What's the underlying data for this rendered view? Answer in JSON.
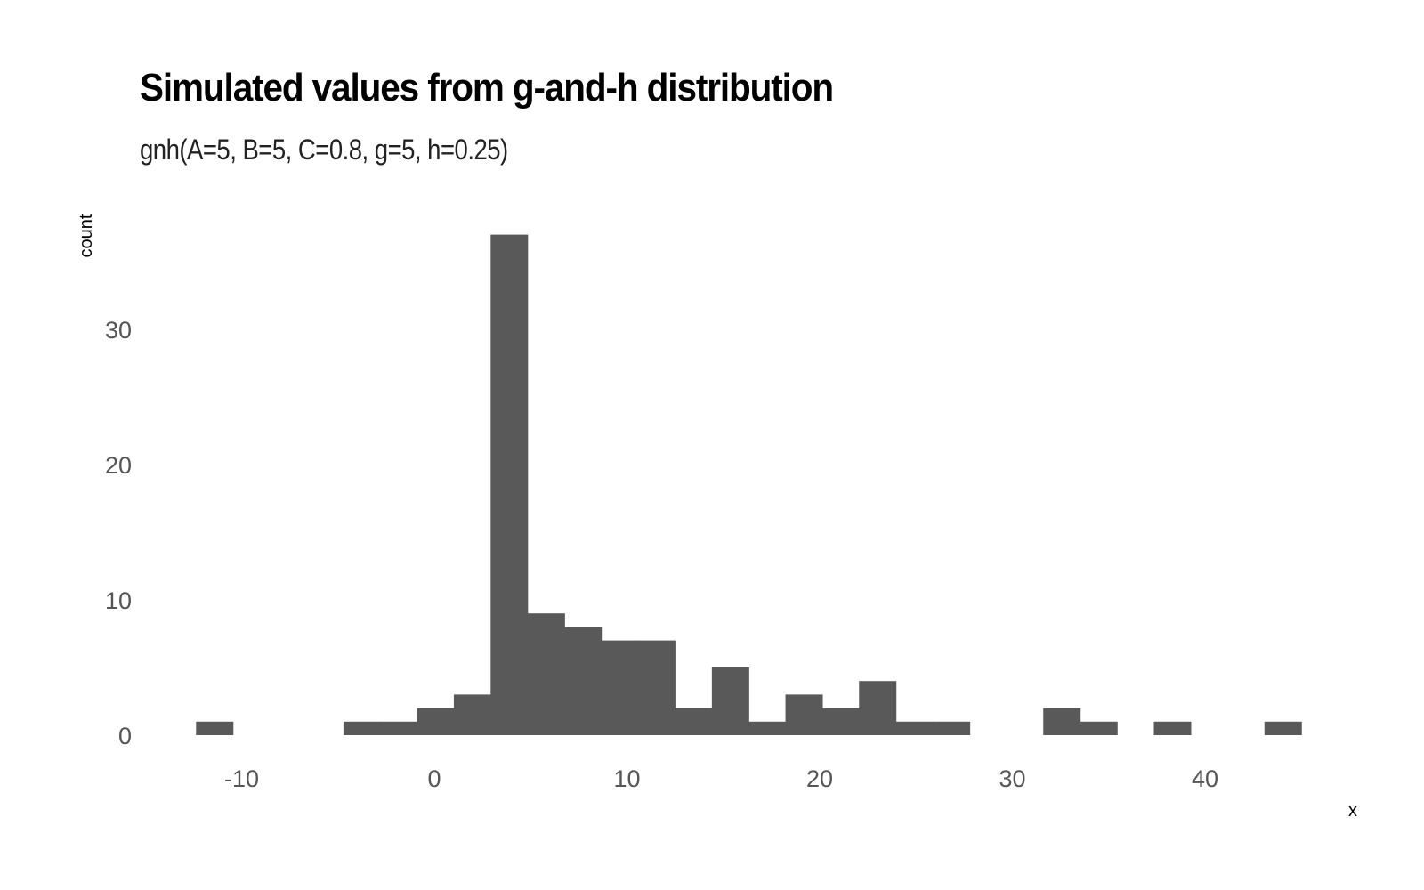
{
  "chart_data": {
    "type": "bar",
    "title": "Simulated values from g-and-h distribution",
    "subtitle": "gnh(A=5, B=5, C=0.8, g=5, h=0.25)",
    "xlabel": "x",
    "ylabel": "count",
    "bar_color": "#595959",
    "grid": false,
    "xlim": [
      -15,
      47
    ],
    "ylim": [
      0,
      37
    ],
    "x_ticks": [
      -10,
      0,
      10,
      20,
      30,
      40
    ],
    "x_tick_labels": [
      "-10",
      "0",
      "10",
      "20",
      "30",
      "40"
    ],
    "y_ticks": [
      0,
      10,
      20,
      30
    ],
    "y_tick_labels": [
      "0",
      "10",
      "20",
      "30"
    ],
    "bin_width": 1.912,
    "bins": [
      {
        "x": -11.41,
        "count": 1
      },
      {
        "x": -9.5,
        "count": 0
      },
      {
        "x": -7.59,
        "count": 0
      },
      {
        "x": -5.67,
        "count": 0
      },
      {
        "x": -3.76,
        "count": 1
      },
      {
        "x": -1.85,
        "count": 1
      },
      {
        "x": 0.06,
        "count": 2
      },
      {
        "x": 1.97,
        "count": 3
      },
      {
        "x": 3.88,
        "count": 37
      },
      {
        "x": 5.8,
        "count": 9
      },
      {
        "x": 7.71,
        "count": 8
      },
      {
        "x": 9.62,
        "count": 7
      },
      {
        "x": 11.53,
        "count": 7
      },
      {
        "x": 13.44,
        "count": 2
      },
      {
        "x": 15.36,
        "count": 5
      },
      {
        "x": 17.27,
        "count": 1
      },
      {
        "x": 19.18,
        "count": 3
      },
      {
        "x": 21.09,
        "count": 2
      },
      {
        "x": 23.0,
        "count": 4
      },
      {
        "x": 24.92,
        "count": 1
      },
      {
        "x": 26.83,
        "count": 1
      },
      {
        "x": 28.74,
        "count": 0
      },
      {
        "x": 30.65,
        "count": 0
      },
      {
        "x": 32.56,
        "count": 2
      },
      {
        "x": 34.48,
        "count": 1
      },
      {
        "x": 36.39,
        "count": 0
      },
      {
        "x": 38.3,
        "count": 1
      },
      {
        "x": 40.21,
        "count": 0
      },
      {
        "x": 42.12,
        "count": 0
      },
      {
        "x": 44.04,
        "count": 1
      }
    ]
  }
}
